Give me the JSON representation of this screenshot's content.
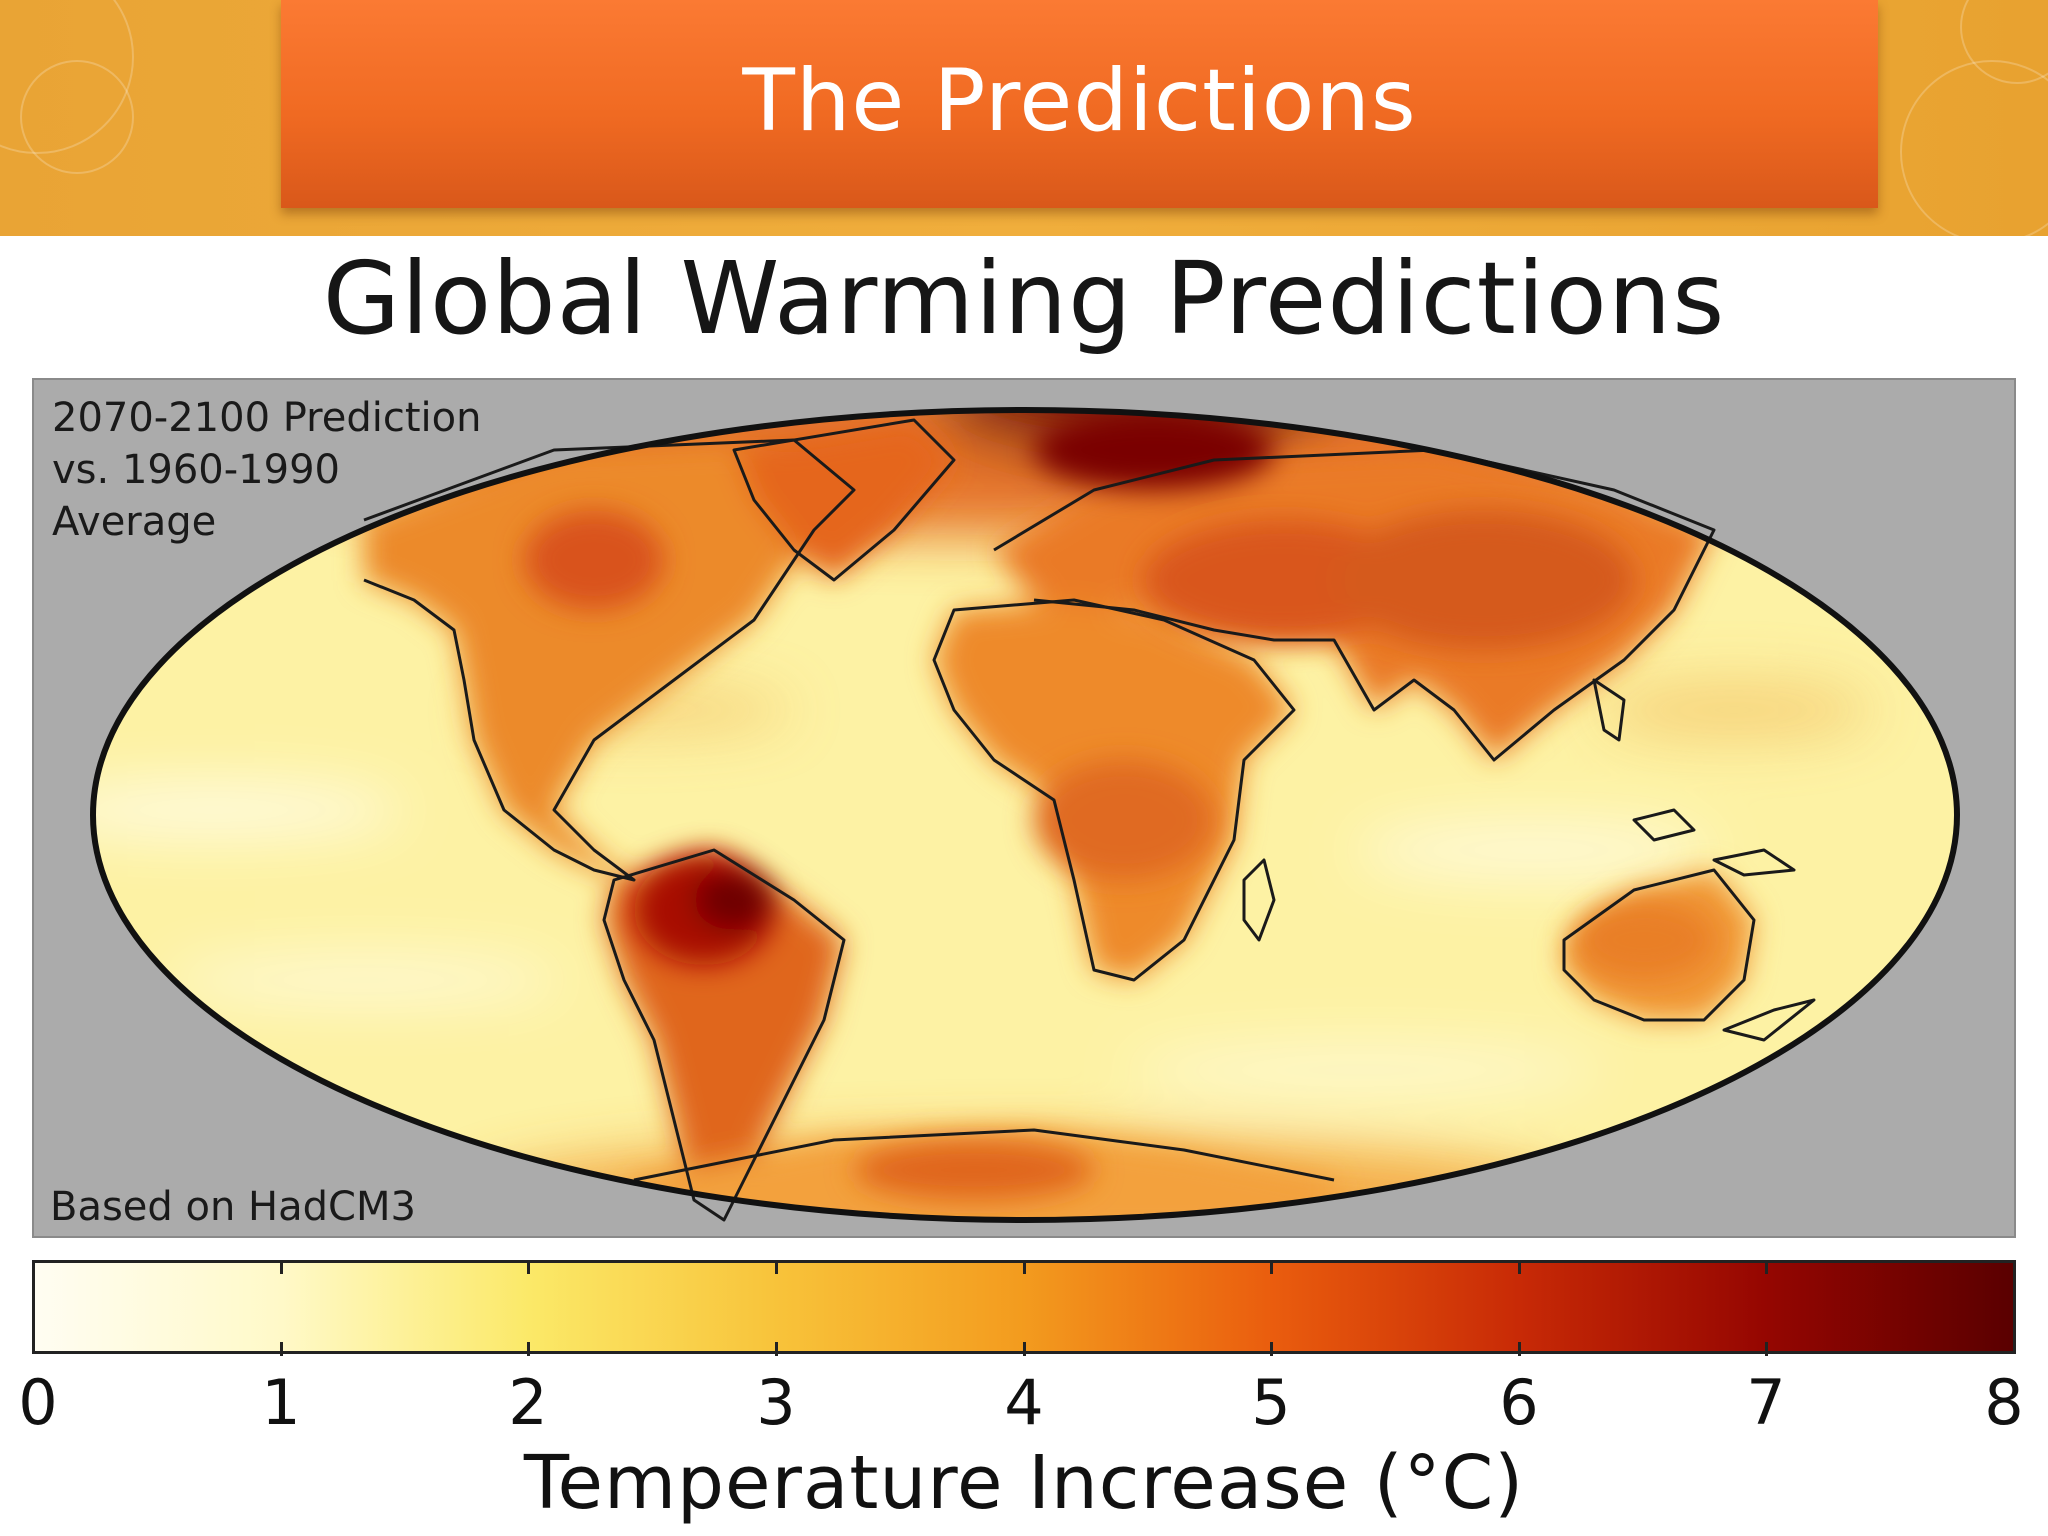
{
  "slide": {
    "title": "The Predictions"
  },
  "figure": {
    "title": "Global Warming Predictions",
    "note_lines": [
      "2070-2100 Prediction",
      "vs. 1960-1990",
      "Average"
    ],
    "source": "Based on HadCM3"
  },
  "colorbar": {
    "label": "Temperature Increase (°C)",
    "ticks": [
      "0",
      "1",
      "2",
      "3",
      "4",
      "5",
      "6",
      "7",
      "8"
    ],
    "range": [
      0,
      8
    ],
    "stops": [
      "#fffdf2",
      "#fff9c8",
      "#fbe968",
      "#f8c33a",
      "#f39b1e",
      "#ea5d0e",
      "#c82a06",
      "#950601",
      "#5a0000"
    ]
  },
  "map": {
    "projection": "Mollweide",
    "ocean_color": "#fdf2a4",
    "background_color": "#ababab",
    "hotspot_colors": [
      "#a80f02",
      "#e3661a",
      "#f2912f"
    ]
  }
}
